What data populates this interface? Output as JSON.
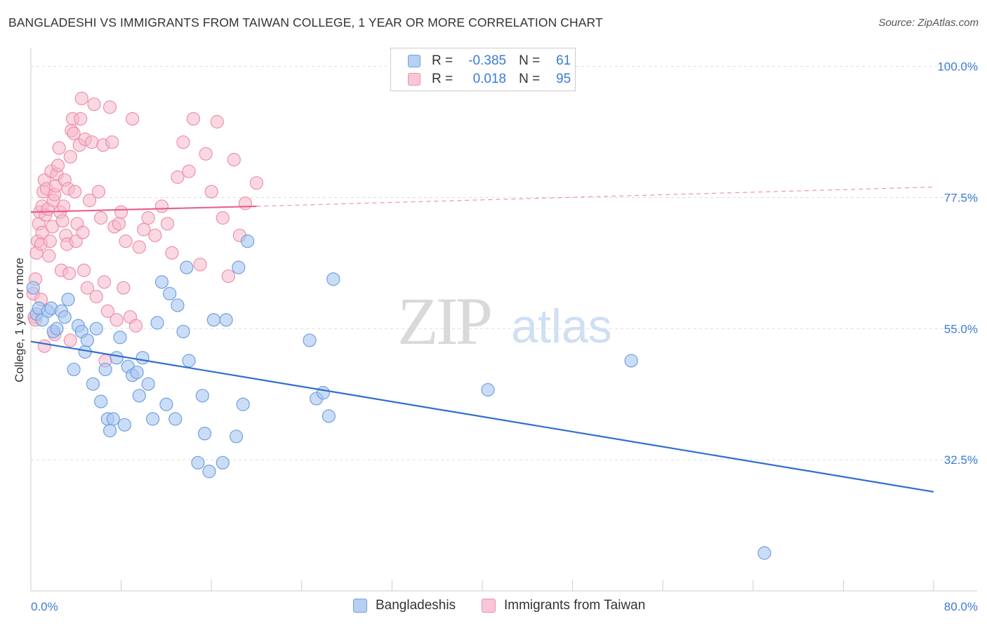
{
  "title": "BANGLADESHI VS IMMIGRANTS FROM TAIWAN COLLEGE, 1 YEAR OR MORE CORRELATION CHART",
  "source": "Source: ZipAtlas.com",
  "watermark": {
    "zip": "ZIP",
    "atlas": "atlas"
  },
  "colors": {
    "blue_fill": "#a9c7f0",
    "blue_stroke": "#6fa0e0",
    "blue_line": "#2f6fce",
    "pink_fill": "#f5b8cb",
    "pink_stroke": "#ee8fab",
    "pink_line": "#e8628a",
    "value_text": "#3a7bd5",
    "grid": "#dddddd"
  },
  "legend": {
    "rows": [
      {
        "r_label": "R =",
        "r_value": "-0.385",
        "n_label": "N =",
        "n_value": "61"
      },
      {
        "r_label": "R =",
        "r_value": "0.018",
        "n_label": "N =",
        "n_value": "95"
      }
    ]
  },
  "bottom_legend": {
    "items": [
      "Bangladeshis",
      "Immigrants from Taiwan"
    ]
  },
  "chart_data": {
    "type": "scatter",
    "title": "BANGLADESHI VS IMMIGRANTS FROM TAIWAN COLLEGE, 1 YEAR OR MORE CORRELATION CHART",
    "xlabel": "",
    "ylabel": "College, 1 year or more",
    "xlim": [
      0,
      80
    ],
    "ylim": [
      10,
      102
    ],
    "x_tick_labels": [
      "0.0%",
      "80.0%"
    ],
    "y_ticks": [
      32.5,
      55.0,
      77.5,
      100.0
    ],
    "y_tick_labels": [
      "32.5%",
      "55.0%",
      "77.5%",
      "100.0%"
    ],
    "grid": "horizontal dashed",
    "legend_position": "top-center",
    "series": [
      {
        "name": "Bangladeshis",
        "r": -0.385,
        "n": 61,
        "trend": {
          "x": [
            0,
            80
          ],
          "y": [
            52.8,
            27.0
          ]
        },
        "points": [
          [
            0.2,
            62
          ],
          [
            0.5,
            57.5
          ],
          [
            0.7,
            58.5
          ],
          [
            1.0,
            56.5
          ],
          [
            1.5,
            58
          ],
          [
            1.8,
            58.5
          ],
          [
            2.0,
            54.5
          ],
          [
            2.3,
            55
          ],
          [
            2.7,
            58
          ],
          [
            3.0,
            57
          ],
          [
            3.3,
            60
          ],
          [
            3.8,
            48
          ],
          [
            4.2,
            55.5
          ],
          [
            4.5,
            54.5
          ],
          [
            4.8,
            51
          ],
          [
            5.0,
            53
          ],
          [
            5.5,
            45.5
          ],
          [
            5.8,
            55
          ],
          [
            6.2,
            42.5
          ],
          [
            6.6,
            48
          ],
          [
            6.8,
            39.5
          ],
          [
            7.0,
            37.5
          ],
          [
            7.3,
            39.5
          ],
          [
            7.6,
            50
          ],
          [
            7.9,
            53.5
          ],
          [
            8.3,
            38.5
          ],
          [
            8.6,
            48.5
          ],
          [
            9.0,
            47
          ],
          [
            9.4,
            47.5
          ],
          [
            9.6,
            43.5
          ],
          [
            9.9,
            50
          ],
          [
            10.4,
            45.5
          ],
          [
            10.8,
            39.5
          ],
          [
            11.2,
            56
          ],
          [
            11.6,
            63
          ],
          [
            12.0,
            42
          ],
          [
            12.3,
            61
          ],
          [
            12.8,
            39.5
          ],
          [
            13.0,
            59
          ],
          [
            13.5,
            54.5
          ],
          [
            13.8,
            65.5
          ],
          [
            14.0,
            49.5
          ],
          [
            14.8,
            32
          ],
          [
            15.2,
            43.5
          ],
          [
            15.4,
            37
          ],
          [
            15.8,
            30.5
          ],
          [
            16.2,
            56.5
          ],
          [
            17.0,
            32
          ],
          [
            17.3,
            56.5
          ],
          [
            18.2,
            36.5
          ],
          [
            18.4,
            65.5
          ],
          [
            18.8,
            42
          ],
          [
            19.2,
            70
          ],
          [
            24.7,
            53
          ],
          [
            25.3,
            43
          ],
          [
            25.9,
            44
          ],
          [
            26.4,
            40
          ],
          [
            26.8,
            63.5
          ],
          [
            40.5,
            44.5
          ],
          [
            53.2,
            49.5
          ],
          [
            65.0,
            16.5
          ]
        ]
      },
      {
        "name": "Immigrants from Taiwan",
        "r": 0.018,
        "n": 95,
        "trend": {
          "x": [
            0,
            20
          ],
          "y": [
            75.0,
            76.0
          ]
        },
        "trend_extension": {
          "x": [
            20,
            80
          ],
          "y": [
            76.0,
            79.3
          ]
        },
        "points": [
          [
            0.2,
            61
          ],
          [
            0.3,
            57
          ],
          [
            0.4,
            63.5
          ],
          [
            0.5,
            68
          ],
          [
            0.6,
            70
          ],
          [
            0.7,
            73
          ],
          [
            0.8,
            75
          ],
          [
            0.9,
            69.5
          ],
          [
            1.0,
            71.5
          ],
          [
            1.0,
            76
          ],
          [
            1.1,
            78.5
          ],
          [
            1.2,
            80.5
          ],
          [
            1.3,
            74.5
          ],
          [
            1.4,
            79
          ],
          [
            1.5,
            75.5
          ],
          [
            1.6,
            67.5
          ],
          [
            1.7,
            70
          ],
          [
            1.8,
            82
          ],
          [
            1.9,
            72.5
          ],
          [
            2.0,
            77
          ],
          [
            2.1,
            78
          ],
          [
            2.2,
            79.5
          ],
          [
            2.3,
            81.5
          ],
          [
            2.4,
            83
          ],
          [
            2.5,
            86
          ],
          [
            2.6,
            75
          ],
          [
            2.7,
            65
          ],
          [
            2.8,
            73.5
          ],
          [
            2.9,
            76
          ],
          [
            3.0,
            80.5
          ],
          [
            3.1,
            71
          ],
          [
            3.2,
            69.5
          ],
          [
            3.3,
            79
          ],
          [
            3.4,
            64.5
          ],
          [
            3.5,
            84.5
          ],
          [
            3.6,
            89
          ],
          [
            3.7,
            91
          ],
          [
            3.8,
            88.5
          ],
          [
            3.9,
            78.5
          ],
          [
            4.0,
            70
          ],
          [
            4.1,
            73
          ],
          [
            4.3,
            86.5
          ],
          [
            4.4,
            91
          ],
          [
            4.5,
            94.5
          ],
          [
            4.6,
            71.5
          ],
          [
            4.7,
            65
          ],
          [
            4.8,
            87.5
          ],
          [
            5.0,
            62
          ],
          [
            5.2,
            77
          ],
          [
            5.4,
            87
          ],
          [
            5.6,
            93.5
          ],
          [
            5.8,
            60.5
          ],
          [
            6.0,
            78.5
          ],
          [
            6.2,
            74
          ],
          [
            6.4,
            86.5
          ],
          [
            6.5,
            63
          ],
          [
            6.6,
            49.5
          ],
          [
            6.8,
            58
          ],
          [
            7.0,
            93
          ],
          [
            7.2,
            87
          ],
          [
            7.4,
            72.5
          ],
          [
            7.6,
            56.5
          ],
          [
            7.8,
            73
          ],
          [
            8.0,
            75
          ],
          [
            8.2,
            62
          ],
          [
            8.4,
            70
          ],
          [
            8.8,
            57
          ],
          [
            9.0,
            91
          ],
          [
            9.3,
            55.5
          ],
          [
            9.6,
            69
          ],
          [
            10.0,
            72
          ],
          [
            10.4,
            74
          ],
          [
            11.0,
            71
          ],
          [
            11.6,
            76
          ],
          [
            12.1,
            73
          ],
          [
            12.5,
            68
          ],
          [
            13.0,
            81
          ],
          [
            13.5,
            87
          ],
          [
            14.0,
            82
          ],
          [
            14.4,
            91
          ],
          [
            15.0,
            66
          ],
          [
            15.5,
            85
          ],
          [
            16.0,
            78.5
          ],
          [
            16.5,
            90.5
          ],
          [
            17.0,
            74
          ],
          [
            17.5,
            64
          ],
          [
            18.0,
            84
          ],
          [
            18.5,
            71
          ],
          [
            19.0,
            76.5
          ],
          [
            20.0,
            80
          ],
          [
            1.2,
            52
          ],
          [
            2.1,
            54
          ],
          [
            0.9,
            60
          ],
          [
            3.5,
            53
          ],
          [
            0.4,
            56.5
          ]
        ]
      }
    ]
  }
}
